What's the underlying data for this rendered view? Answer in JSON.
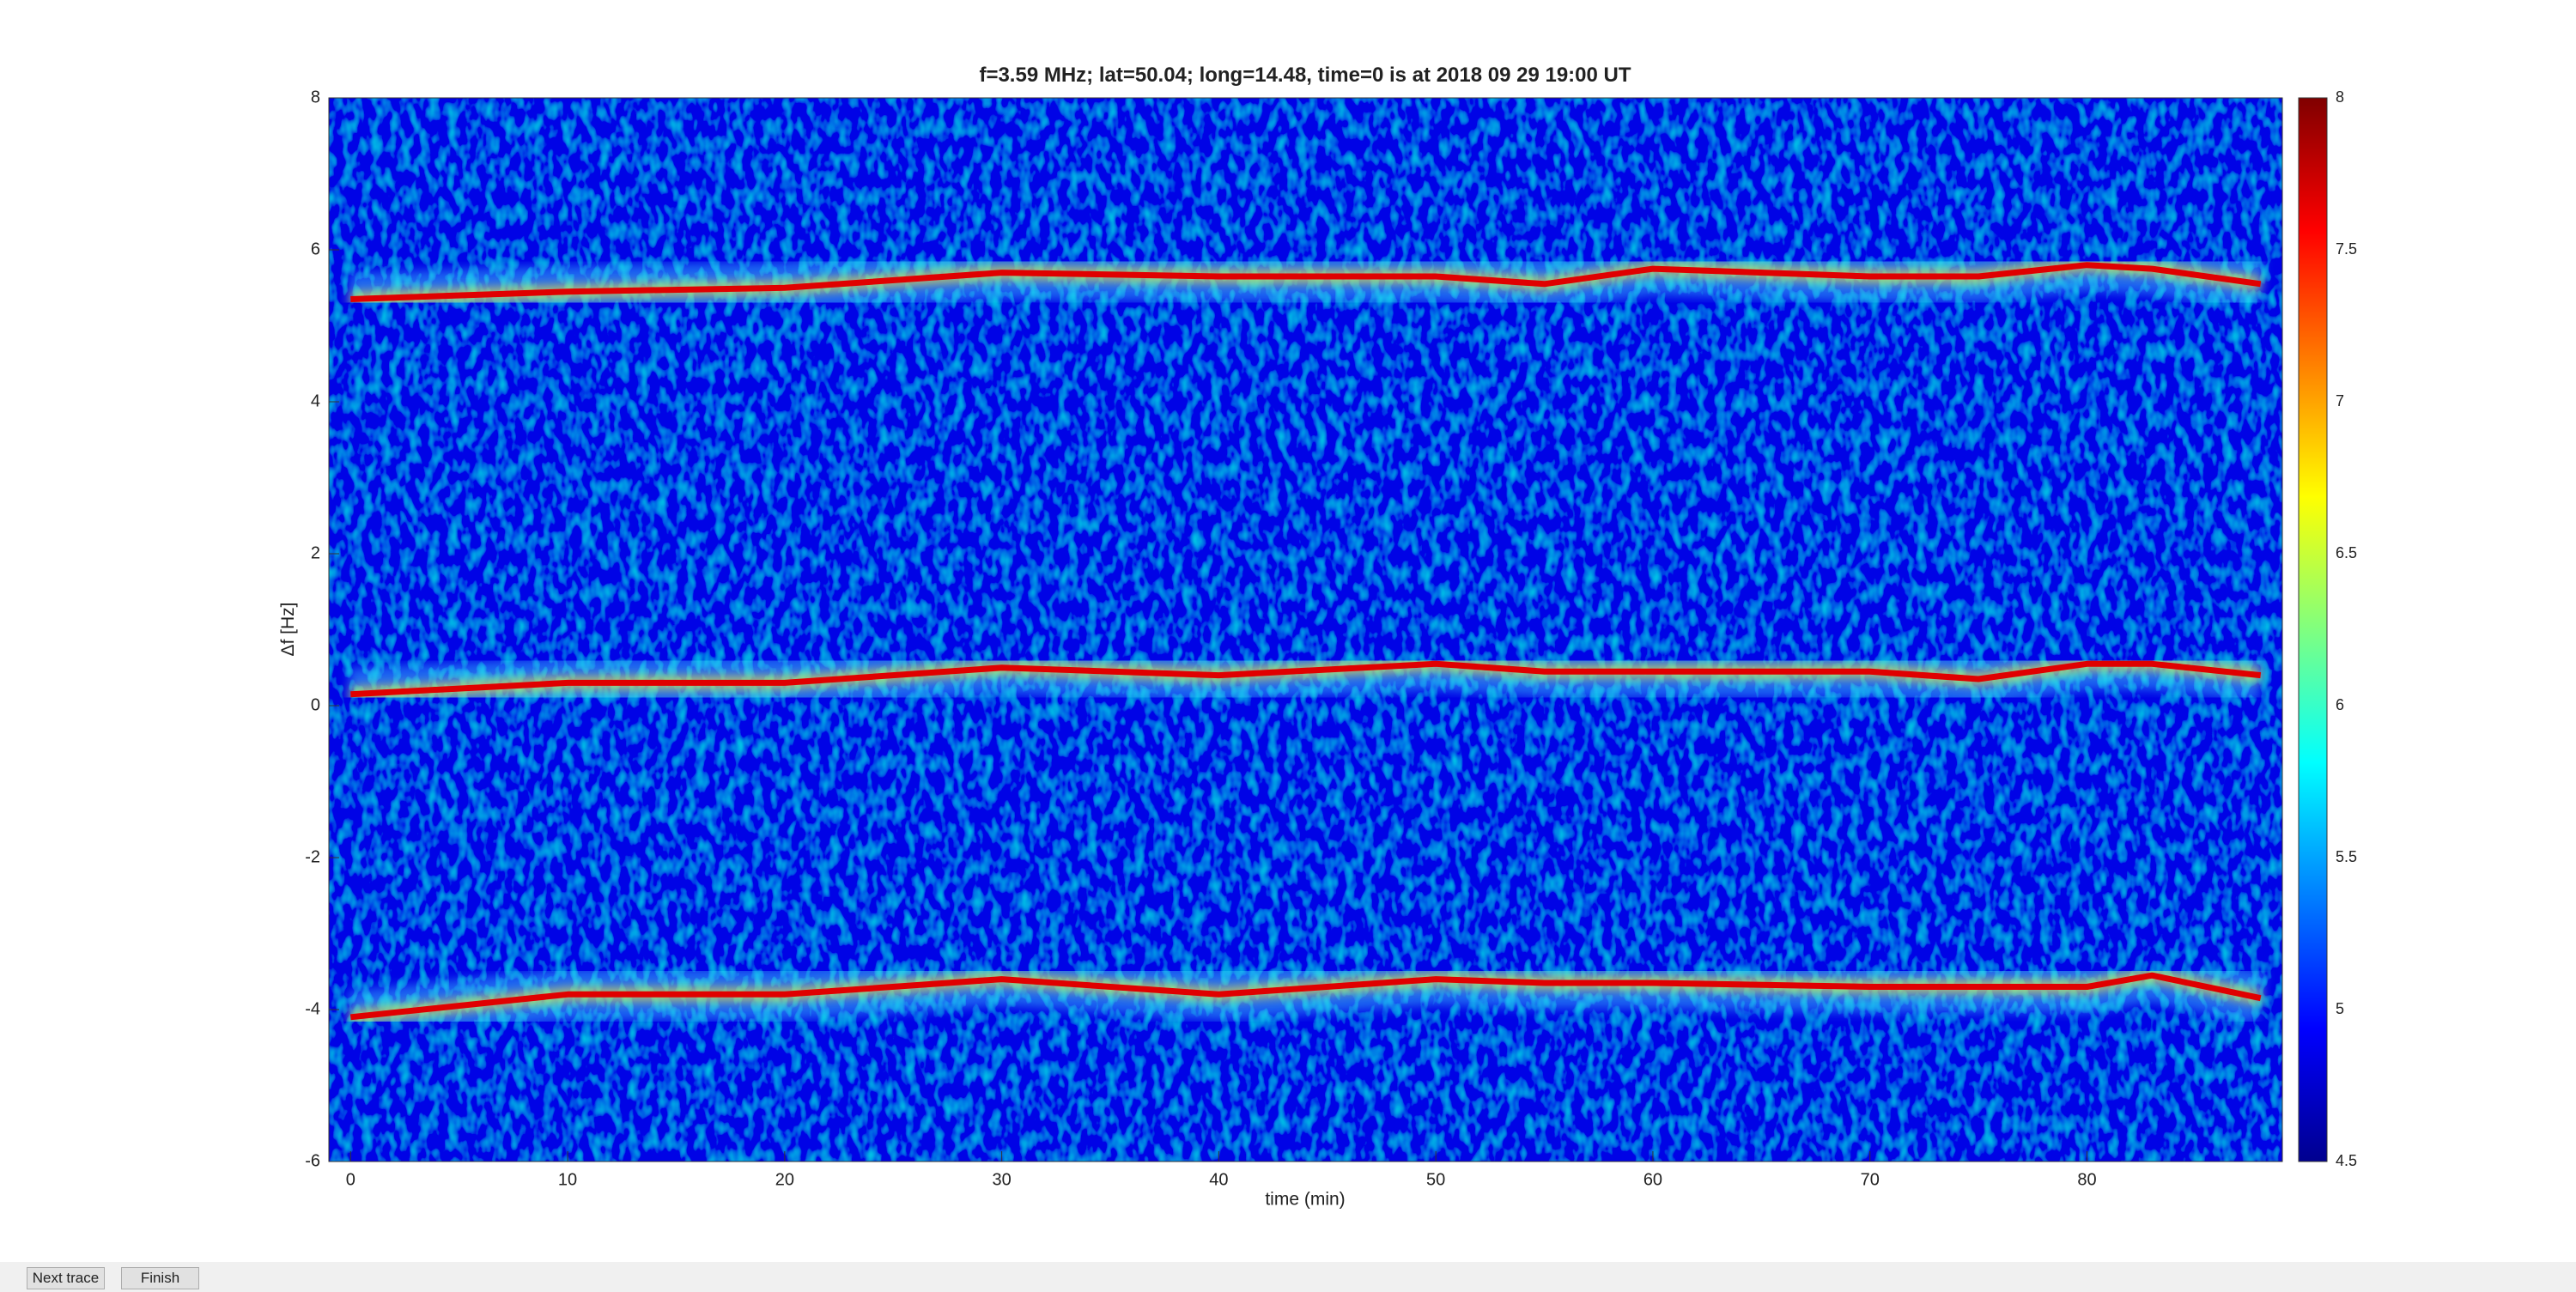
{
  "chart_data": {
    "type": "line",
    "title": "f=3.59 MHz;  lat=50.04; long=14.48, time=0 is at 2018 09 29 19:00 UT",
    "x_label": "time (min)",
    "y_label": "Δf [Hz]",
    "x": [
      0,
      10,
      20,
      30,
      40,
      50,
      55,
      60,
      70,
      75,
      80,
      83,
      88
    ],
    "series": [
      {
        "color": "#e00000",
        "values": [
          5.35,
          5.45,
          5.5,
          5.7,
          5.65,
          5.65,
          5.55,
          5.75,
          5.65,
          5.65,
          5.8,
          5.75,
          5.55
        ]
      },
      {
        "color": "#e00000",
        "values": [
          0.15,
          0.3,
          0.3,
          0.5,
          0.4,
          0.55,
          0.45,
          0.45,
          0.45,
          0.35,
          0.55,
          0.55,
          0.4
        ]
      },
      {
        "color": "#e00000",
        "values": [
          -4.1,
          -3.8,
          -3.8,
          -3.6,
          -3.8,
          -3.6,
          -3.65,
          -3.65,
          -3.7,
          -3.7,
          -3.7,
          -3.55,
          -3.85
        ]
      }
    ],
    "xlim": [
      -1,
      89
    ],
    "ylim": [
      -6,
      8
    ],
    "xticks": [
      0,
      10,
      20,
      30,
      40,
      50,
      60,
      70,
      80
    ],
    "yticks": [
      -6,
      -4,
      -2,
      0,
      2,
      4,
      6,
      8
    ],
    "colorbar": {
      "lim": [
        4.5,
        8
      ],
      "ticks": [
        4.5,
        5,
        5.5,
        6,
        6.5,
        7,
        7.5,
        8
      ]
    }
  },
  "buttons": [
    "Next trace",
    "Finish"
  ]
}
